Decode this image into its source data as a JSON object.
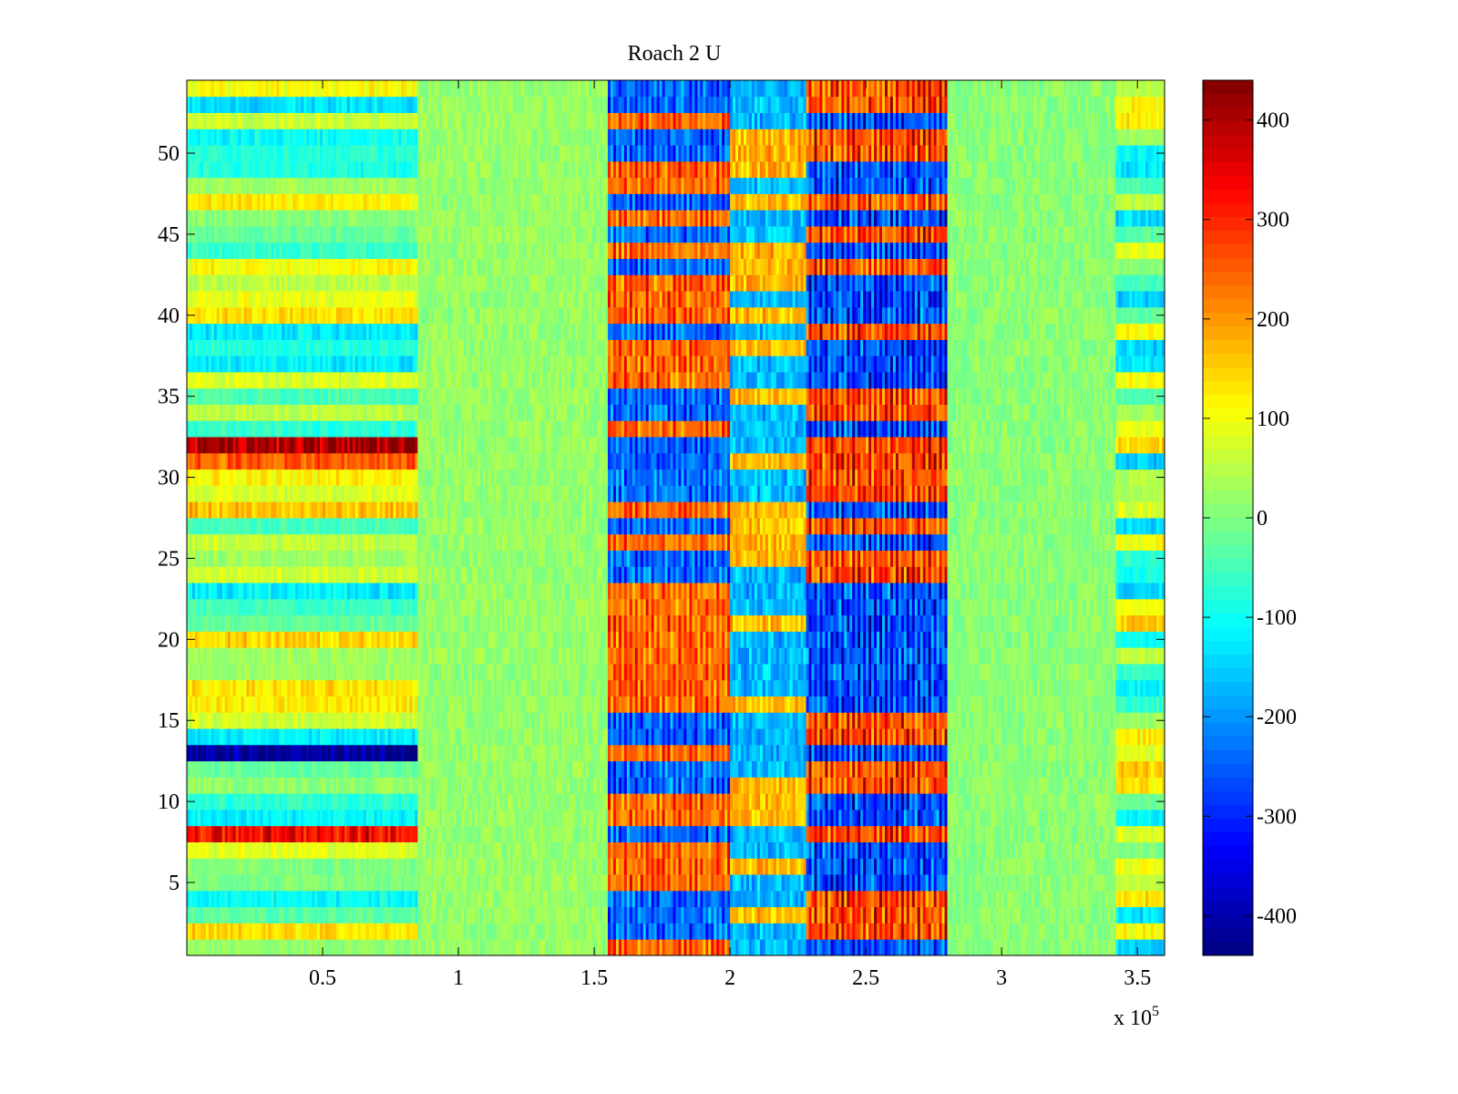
{
  "chart_data": {
    "type": "heatmap",
    "title": "Roach 2 U",
    "xlabel": "",
    "ylabel": "",
    "x_multiplier_label": "x 10",
    "x_multiplier_exponent": "5",
    "xlim": [
      0,
      3.6
    ],
    "ylim": [
      0.5,
      54.5
    ],
    "x_ticks": [
      0.5,
      1,
      1.5,
      2,
      2.5,
      3,
      3.5
    ],
    "x_tick_labels": [
      "0.5",
      "1",
      "1.5",
      "2",
      "2.5",
      "3",
      "3.5"
    ],
    "y_ticks": [
      5,
      10,
      15,
      20,
      25,
      30,
      35,
      40,
      45,
      50
    ],
    "y_tick_labels": [
      "5",
      "10",
      "15",
      "20",
      "25",
      "30",
      "35",
      "40",
      "45",
      "50"
    ],
    "rows": 54,
    "colorbar": {
      "colormap": "jet",
      "clim": [
        -440,
        440
      ],
      "ticks": [
        400,
        300,
        200,
        100,
        0,
        -100,
        -200,
        -300,
        -400
      ],
      "tick_labels": [
        "400",
        "300",
        "200",
        "100",
        "0",
        "-100",
        "-200",
        "-300",
        "-400"
      ]
    },
    "segments": [
      {
        "x_range": [
          0,
          0.85
        ],
        "pattern": "steady per-row offsets",
        "typical_range": [
          -440,
          440
        ]
      },
      {
        "x_range": [
          0.85,
          1.55
        ],
        "pattern": "noise near zero",
        "typical_range": [
          -50,
          80
        ]
      },
      {
        "x_range": [
          1.55,
          2.0
        ],
        "pattern": "alternating stripes, rows strongly positive or negative",
        "typical_range": [
          -420,
          300
        ]
      },
      {
        "x_range": [
          2.0,
          2.28
        ],
        "pattern": "moderate stripes",
        "typical_range": [
          -250,
          100
        ]
      },
      {
        "x_range": [
          2.28,
          2.8
        ],
        "pattern": "strong alternating stripes",
        "typical_range": [
          -420,
          440
        ]
      },
      {
        "x_range": [
          2.8,
          3.42
        ],
        "pattern": "noise near zero",
        "typical_range": [
          -60,
          80
        ]
      },
      {
        "x_range": [
          3.42,
          3.6
        ],
        "pattern": "per-row offsets",
        "typical_range": [
          -200,
          260
        ]
      }
    ]
  }
}
